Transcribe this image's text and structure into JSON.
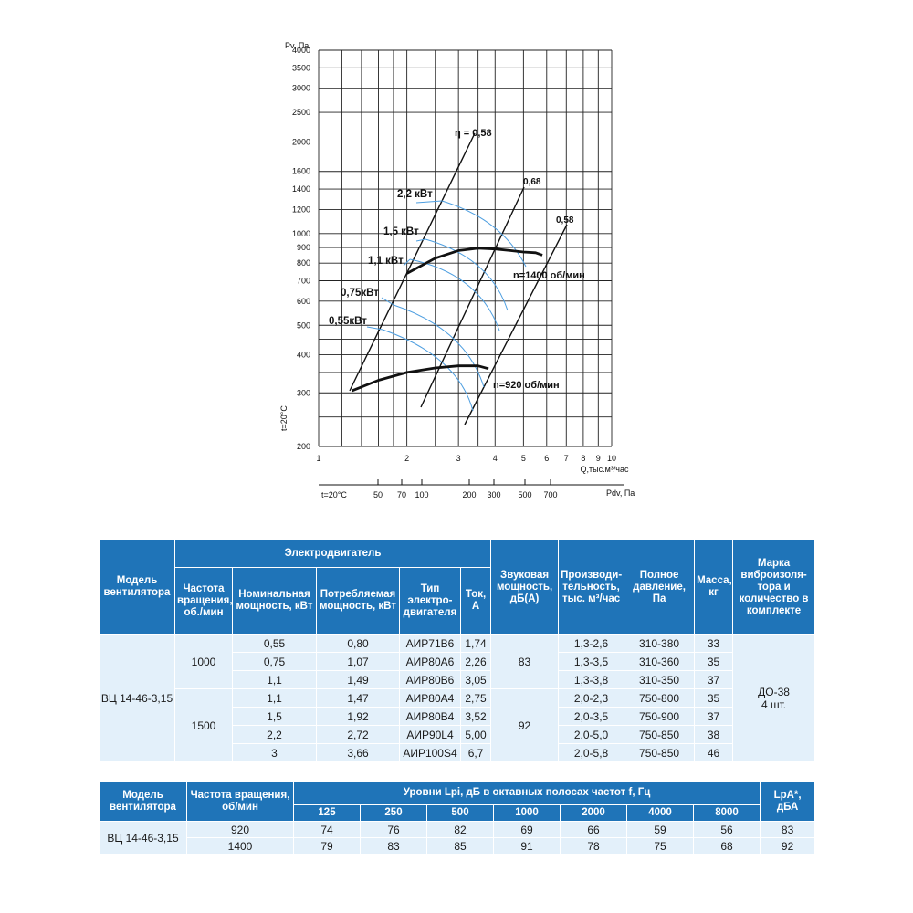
{
  "chart": {
    "y_axis_label": "Pv, Па",
    "y_ticks": [
      "4000",
      "3500",
      "3000",
      "2500",
      "2000",
      "1600",
      "1400",
      "1200",
      "1000",
      "900",
      "800",
      "700",
      "600",
      "500",
      "400",
      "300",
      "200"
    ],
    "x_axis_label": "Q,тыс.м³/час",
    "x_ticks": [
      "1",
      "2",
      "3",
      "4",
      "5",
      "6",
      "7",
      "8",
      "9",
      "10"
    ],
    "temp_label": "t=20°C",
    "pdv_axis_label": "Pdv, Па",
    "pdv_ticks": [
      "50",
      "70",
      "100",
      "200",
      "300",
      "500",
      "700"
    ],
    "efficiency_labels": [
      "η = 0,58",
      "0,68",
      "0,58"
    ],
    "power_labels": [
      "2,2 кВт",
      "1,5 кВт",
      "1,1 кВт",
      "0,75кВт",
      "0,55кВт"
    ],
    "speed_labels": [
      "n=1400 об/мин",
      "n=920 об/мин"
    ]
  },
  "chart_data": {
    "type": "line",
    "xlabel": "Q,тыс.м³/час",
    "ylabel": "Pv, Па",
    "x_scale": "log",
    "y_scale": "log",
    "xlim": [
      1,
      10
    ],
    "ylim": [
      200,
      4000
    ],
    "series": [
      {
        "name": "n=1400 об/мин",
        "x": [
          2.0,
          2.5,
          3.0,
          3.5,
          4.0,
          4.5,
          5.0,
          5.5,
          5.8
        ],
        "y": [
          740,
          830,
          880,
          895,
          890,
          880,
          870,
          865,
          850
        ]
      },
      {
        "name": "n=920 об/мин",
        "x": [
          1.3,
          1.6,
          2.0,
          2.5,
          3.0,
          3.5,
          3.8
        ],
        "y": [
          305,
          330,
          350,
          362,
          368,
          368,
          360
        ]
      }
    ]
  },
  "spec_table": {
    "group_header": "Электродвигатель",
    "headers": {
      "model": "Модель вентилятора",
      "speed": "Частота вращения, об./мин",
      "nominal": "Номинальная мощность, кВт",
      "consumed": "Потребляемая мощность, кВт",
      "motor_type": "Тип электро-двигателя",
      "current": "Ток, А",
      "sound": "Звуковая мощность, дБ(А)",
      "flow": "Производи-тельность, тыс. м³/час",
      "pressure": "Полное давление, Па",
      "mass": "Масса, кг",
      "isolator": "Марка виброизоля-тора и количество в комплекте"
    },
    "model": "ВЦ 14-46-3,15",
    "speed_1000": "1000",
    "speed_1500": "1500",
    "sound_1000": "83",
    "sound_1500": "92",
    "isolator": "ДО-38",
    "isolator_count": "4 шт.",
    "rows": [
      {
        "nominal": "0,55",
        "consumed": "0,80",
        "type": "АИР71В6",
        "current": "1,74",
        "flow": "1,3-2,6",
        "pressure": "310-380",
        "mass": "33"
      },
      {
        "nominal": "0,75",
        "consumed": "1,07",
        "type": "АИР80А6",
        "current": "2,26",
        "flow": "1,3-3,5",
        "pressure": "310-360",
        "mass": "35"
      },
      {
        "nominal": "1,1",
        "consumed": "1,49",
        "type": "АИР80В6",
        "current": "3,05",
        "flow": "1,3-3,8",
        "pressure": "310-350",
        "mass": "37"
      },
      {
        "nominal": "1,1",
        "consumed": "1,47",
        "type": "АИР80А4",
        "current": "2,75",
        "flow": "2,0-2,3",
        "pressure": "750-800",
        "mass": "35"
      },
      {
        "nominal": "1,5",
        "consumed": "1,92",
        "type": "АИР80В4",
        "current": "3,52",
        "flow": "2,0-3,5",
        "pressure": "750-900",
        "mass": "37"
      },
      {
        "nominal": "2,2",
        "consumed": "2,72",
        "type": "АИР90L4",
        "current": "5,00",
        "flow": "2,0-5,0",
        "pressure": "750-850",
        "mass": "38"
      },
      {
        "nominal": "3",
        "consumed": "3,66",
        "type": "АИР100S4",
        "current": "6,7",
        "flow": "2,0-5,8",
        "pressure": "750-850",
        "mass": "46"
      }
    ]
  },
  "acoustic_table": {
    "headers": {
      "model": "Модель вентилятора",
      "speed": "Частота вращения, об/мин",
      "levels": "Уровни Lpi, дБ в октавных полосах частот f, Гц",
      "lpa": "LpA*, дБА"
    },
    "freqs": [
      "125",
      "250",
      "500",
      "1000",
      "2000",
      "4000",
      "8000"
    ],
    "model": "ВЦ 14-46-3,15",
    "rows": [
      {
        "speed": "920",
        "values": [
          "74",
          "76",
          "82",
          "69",
          "66",
          "59",
          "56"
        ],
        "lpa": "83"
      },
      {
        "speed": "1400",
        "values": [
          "79",
          "83",
          "85",
          "91",
          "78",
          "75",
          "68"
        ],
        "lpa": "92"
      }
    ]
  }
}
